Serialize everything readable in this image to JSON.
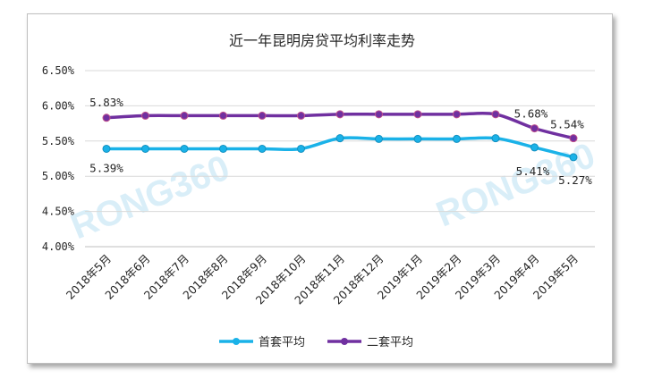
{
  "chart_data": {
    "type": "line",
    "title": "近一年昆明房贷平均利率走势",
    "categories": [
      "2018年5月",
      "2018年6月",
      "2018年7月",
      "2018年8月",
      "2018年9月",
      "2018年10月",
      "2018年11月",
      "2018年12月",
      "2019年1月",
      "2019年2月",
      "2019年3月",
      "2019年4月",
      "2019年5月"
    ],
    "series": [
      {
        "name": "首套平均",
        "color": "#1ab2e8",
        "values": [
          5.39,
          5.39,
          5.39,
          5.39,
          5.39,
          5.39,
          5.54,
          5.53,
          5.53,
          5.53,
          5.54,
          5.41,
          5.27
        ]
      },
      {
        "name": "二套平均",
        "color": "#7030a0",
        "values": [
          5.83,
          5.86,
          5.86,
          5.86,
          5.86,
          5.86,
          5.88,
          5.88,
          5.88,
          5.88,
          5.88,
          5.68,
          5.54
        ]
      }
    ],
    "ylim": [
      4.0,
      6.5
    ],
    "yticks": [
      "4.00%",
      "4.50%",
      "5.00%",
      "5.50%",
      "6.00%",
      "6.50%"
    ],
    "grid": true,
    "legend": "bottom",
    "watermark": "RONG360",
    "data_labels": [
      {
        "series": 0,
        "index": 0,
        "text": "5.39%"
      },
      {
        "series": 1,
        "index": 0,
        "text": "5.83%"
      },
      {
        "series": 1,
        "index": 11,
        "text": "5.68%"
      },
      {
        "series": 1,
        "index": 12,
        "text": "5.54%"
      },
      {
        "series": 0,
        "index": 11,
        "text": "5.41%"
      },
      {
        "series": 0,
        "index": 12,
        "text": "5.27%"
      }
    ]
  }
}
